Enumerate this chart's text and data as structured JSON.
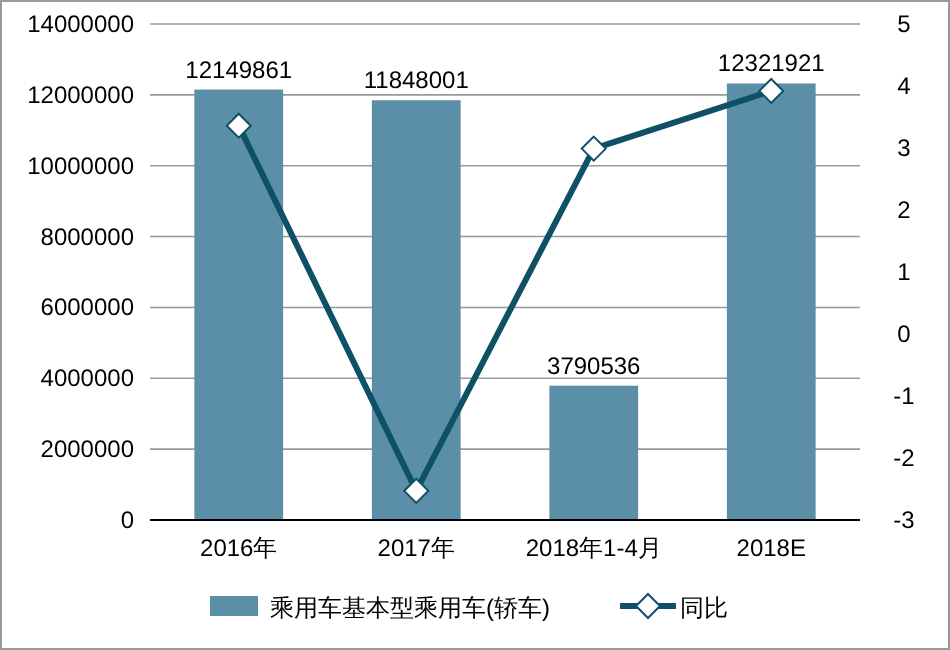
{
  "chart_data": {
    "type": "bar",
    "categories": [
      "2016年",
      "2017年",
      "2018年1-4月",
      "2018E"
    ],
    "series": [
      {
        "name": "乘用车基本型乘用车(轿车)",
        "color": "#5b8fa8",
        "values": [
          12149861,
          11848001,
          3790536,
          12321921
        ],
        "data_labels": true
      },
      {
        "name": "同比",
        "type": "line",
        "axis": "y2",
        "color": "#0e5066",
        "values": [
          3.36,
          -2.53,
          2.99,
          3.92
        ],
        "marker": "diamond"
      }
    ],
    "ylim": [
      0,
      14000000
    ],
    "yticks": [
      0,
      2000000,
      4000000,
      6000000,
      8000000,
      10000000,
      12000000,
      14000000
    ],
    "y2lim": [
      -3,
      5
    ],
    "y2ticks": [
      -3,
      -2,
      -1,
      0,
      1,
      2,
      3,
      4,
      5
    ],
    "grid": "y",
    "legend": "bottom"
  }
}
